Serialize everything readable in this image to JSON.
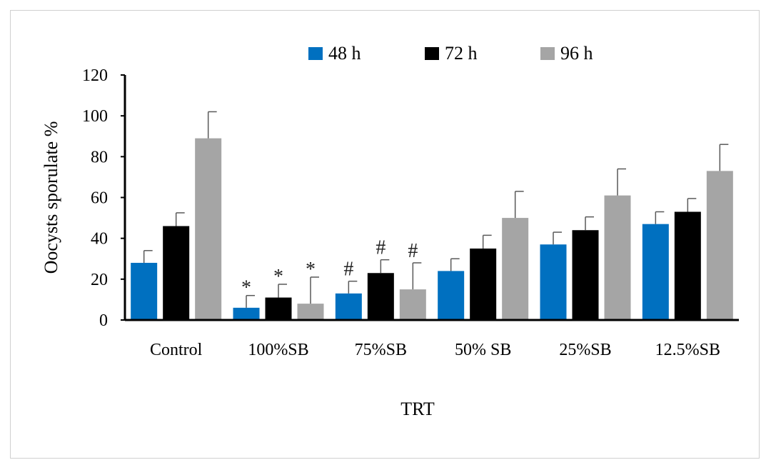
{
  "chart_data": {
    "type": "bar",
    "title": "",
    "xlabel": "TRT",
    "ylabel": "Oocysts sporulate %",
    "ylim": [
      0,
      120
    ],
    "yticks": [
      0,
      20,
      40,
      60,
      80,
      100,
      120
    ],
    "categories": [
      "Control",
      "100%SB",
      "75%SB",
      "50% SB",
      "25%SB",
      "12.5%SB"
    ],
    "legend_position": "top",
    "series": [
      {
        "name": "48 h",
        "color": "#0070C0",
        "values": [
          28,
          6,
          13,
          24,
          37,
          47
        ],
        "errors": [
          6,
          6,
          6,
          6,
          6,
          6
        ],
        "annotations": [
          "",
          "*",
          "#",
          "",
          "",
          ""
        ]
      },
      {
        "name": "72 h",
        "color": "#000000",
        "values": [
          46,
          11,
          23,
          35,
          44,
          53
        ],
        "errors": [
          6.5,
          6.5,
          6.5,
          6.5,
          6.5,
          6.5
        ],
        "annotations": [
          "",
          "*",
          "#",
          "",
          "",
          ""
        ]
      },
      {
        "name": "96 h",
        "color": "#A5A5A5",
        "values": [
          89,
          8,
          15,
          50,
          61,
          73
        ],
        "errors": [
          13,
          13,
          13,
          13,
          13,
          13
        ],
        "annotations": [
          "",
          "*",
          "#",
          "",
          "",
          ""
        ]
      }
    ]
  }
}
